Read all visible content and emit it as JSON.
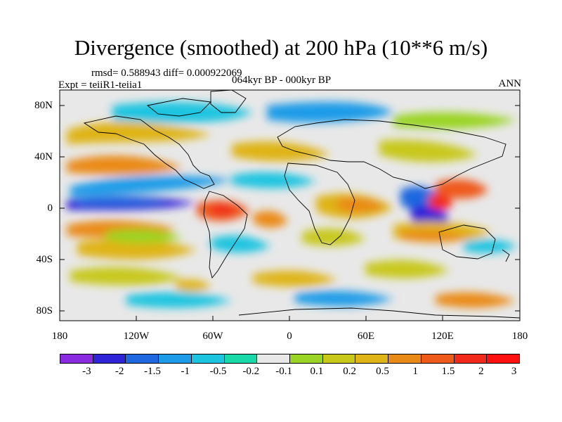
{
  "title": "Divergence (smoothed) at 200 hPa (10**6 m/s)",
  "stats": "rmsd= 0.588943 diff= 0.000922069",
  "experiment": "Expt = teiiR1-teiia1",
  "period": "064kyr BP - 000kyr BP",
  "season": "ANN",
  "axes": {
    "y_ticks": [
      "80N",
      "40N",
      "0",
      "40S",
      "80S"
    ],
    "x_ticks": [
      "180",
      "120W",
      "60W",
      "0",
      "60E",
      "120E",
      "180"
    ]
  },
  "legend": {
    "colors": [
      "#8a2be2",
      "#3024d8",
      "#1f68e0",
      "#1e9be8",
      "#1cc4e0",
      "#19d9a8",
      "#e8e8e8",
      "#9ad424",
      "#c8c81a",
      "#dfb416",
      "#ea8a16",
      "#ee5a1a",
      "#f22a1c",
      "#ff1010"
    ],
    "labels": [
      "-3",
      "-2",
      "-1.5",
      "-1",
      "-0.5",
      "-0.2",
      "-0.1",
      "0.1",
      "0.2",
      "0.5",
      "1",
      "1.5",
      "2",
      "3"
    ]
  },
  "map_data": {
    "field": "divergence anomaly",
    "lon_range": [
      -180,
      180
    ],
    "lat_range": [
      -90,
      90
    ],
    "features": [
      {
        "name": "tropical-east-pacific-convergence",
        "lon": -140,
        "lat": 5,
        "value": -2
      },
      {
        "name": "north-pacific-convergence",
        "lon": -150,
        "lat": 22,
        "value": -1
      },
      {
        "name": "atlantic-convergence-band",
        "lon": -40,
        "lat": 18,
        "value": -1
      },
      {
        "name": "maritime-continent-convergence",
        "lon": 110,
        "lat": -2,
        "value": -2
      },
      {
        "name": "south-america-divergence",
        "lon": -55,
        "lat": 0,
        "value": 1.5
      },
      {
        "name": "africa-divergence",
        "lon": 25,
        "lat": 5,
        "value": 1
      },
      {
        "name": "west-pacific-divergence",
        "lon": 135,
        "lat": 15,
        "value": 1.5
      },
      {
        "name": "south-pacific-divergence",
        "lon": -150,
        "lat": -20,
        "value": 0.5
      },
      {
        "name": "indian-ocean-divergence",
        "lon": 80,
        "lat": -20,
        "value": 0.5
      },
      {
        "name": "southern-ocean-convergence",
        "lon": -10,
        "lat": -48,
        "value": -0.5
      }
    ]
  }
}
